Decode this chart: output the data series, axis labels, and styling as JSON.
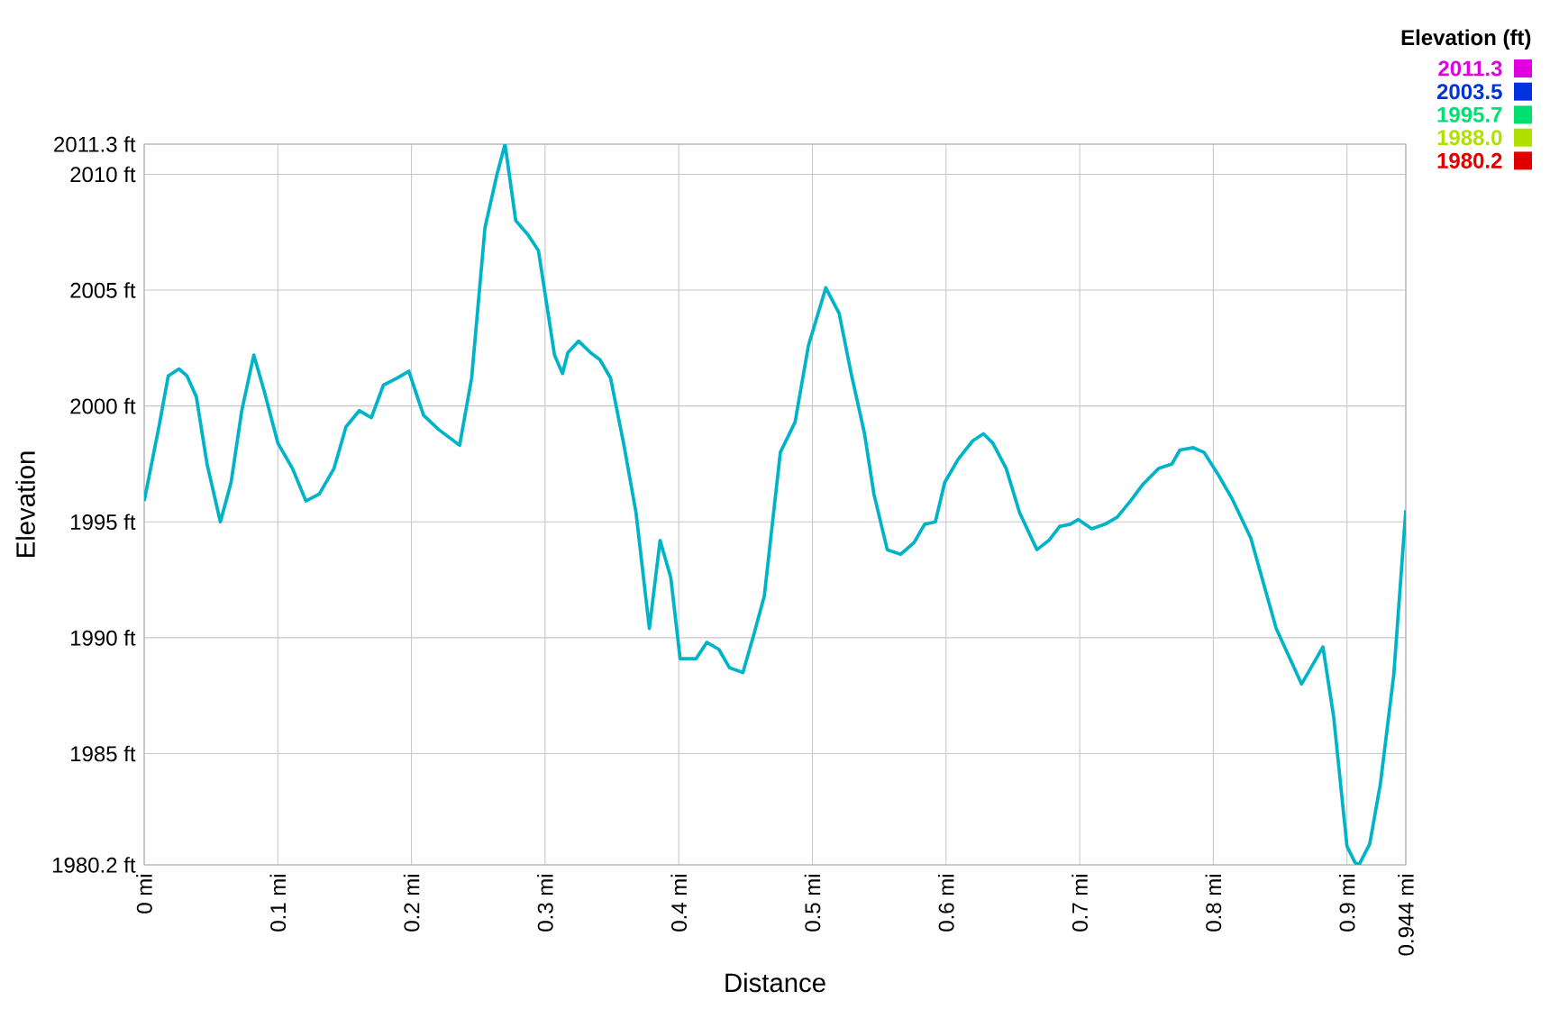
{
  "chart_data": {
    "type": "line",
    "xlabel": "Distance",
    "ylabel": "Elevation",
    "clabel": "Elevation (ft)",
    "x": [
      0,
      0.011,
      0.018,
      0.026,
      0.032,
      0.039,
      0.047,
      0.057,
      0.065,
      0.073,
      0.082,
      0.09,
      0.1,
      0.111,
      0.121,
      0.131,
      0.142,
      0.151,
      0.161,
      0.17,
      0.179,
      0.189,
      0.198,
      0.209,
      0.22,
      0.236,
      0.245,
      0.255,
      0.264,
      0.27,
      0.278,
      0.287,
      0.295,
      0.307,
      0.313,
      0.317,
      0.325,
      0.334,
      0.341,
      0.349,
      0.359,
      0.368,
      0.378,
      0.386,
      0.394,
      0.401,
      0.413,
      0.421,
      0.43,
      0.438,
      0.448,
      0.456,
      0.464,
      0.476,
      0.487,
      0.497,
      0.51,
      0.52,
      0.529,
      0.539,
      0.546,
      0.556,
      0.566,
      0.576,
      0.584,
      0.592,
      0.599,
      0.609,
      0.62,
      0.628,
      0.635,
      0.645,
      0.655,
      0.668,
      0.677,
      0.685,
      0.693,
      0.699,
      0.709,
      0.719,
      0.728,
      0.738,
      0.747,
      0.759,
      0.769,
      0.775,
      0.785,
      0.793,
      0.804,
      0.814,
      0.828,
      0.847,
      0.866,
      0.882,
      0.89,
      0.9,
      0.906,
      0.909,
      0.917,
      0.925,
      0.935,
      0.944
    ],
    "series": [
      {
        "color": "#00b4c8",
        "values": [
          1995.9,
          1999.1,
          2001.3,
          2001.6,
          2001.3,
          2000.4,
          1997.5,
          1995.0,
          1996.7,
          1999.8,
          2002.2,
          2000.6,
          1998.4,
          1997.3,
          1995.9,
          1996.2,
          1997.3,
          1999.1,
          1999.8,
          1999.5,
          2000.9,
          2001.2,
          2001.5,
          1999.6,
          1999.0,
          1998.3,
          2001.2,
          2007.7,
          2010.0,
          2011.3,
          2008.0,
          2007.4,
          2006.7,
          2002.2,
          2001.4,
          2002.3,
          2002.8,
          2002.3,
          2002.0,
          2001.2,
          1998.3,
          1995.4,
          1990.4,
          1994.2,
          1992.6,
          1989.1,
          1989.1,
          1989.8,
          1989.5,
          1988.7,
          1988.5,
          1990.1,
          1991.8,
          1998.0,
          1999.3,
          2002.6,
          2005.1,
          2004.0,
          2001.4,
          1998.8,
          1996.2,
          1993.8,
          1993.6,
          1994.1,
          1994.9,
          1995.0,
          1996.7,
          1997.7,
          1998.5,
          1998.8,
          1998.4,
          1997.3,
          1995.4,
          1993.8,
          1994.2,
          1994.8,
          1994.9,
          1995.1,
          1994.7,
          1994.9,
          1995.2,
          1995.9,
          1996.6,
          1997.3,
          1997.5,
          1998.1,
          1998.2,
          1998.0,
          1997.0,
          1996.0,
          1994.3,
          1990.4,
          1988.0,
          1989.6,
          1986.6,
          1981.0,
          1980.3,
          1980.2,
          1981.1,
          1983.7,
          1988.4,
          1995.5
        ]
      }
    ],
    "xlim": [
      0,
      0.944
    ],
    "xticks": [
      {
        "value": 0,
        "label": "0 mi"
      },
      {
        "value": 0.1,
        "label": "0.1 mi"
      },
      {
        "value": 0.2,
        "label": "0.2 mi"
      },
      {
        "value": 0.3,
        "label": "0.3 mi"
      },
      {
        "value": 0.4,
        "label": "0.4 mi"
      },
      {
        "value": 0.5,
        "label": "0.5 mi"
      },
      {
        "value": 0.6,
        "label": "0.6 mi"
      },
      {
        "value": 0.7,
        "label": "0.7 mi"
      },
      {
        "value": 0.8,
        "label": "0.8 mi"
      },
      {
        "value": 0.9,
        "label": "0.9 mi"
      },
      {
        "value": 0.944,
        "label": "0.944 mi"
      }
    ],
    "ylim": [
      1980.2,
      2011.3
    ],
    "yticks": [
      {
        "value": 1980.2,
        "label": "1980.2 ft"
      },
      {
        "value": 1985,
        "label": "1985 ft"
      },
      {
        "value": 1990,
        "label": "1990 ft"
      },
      {
        "value": 1995,
        "label": "1995 ft"
      },
      {
        "value": 2000,
        "label": "2000 ft"
      },
      {
        "value": 2005,
        "label": "2005 ft"
      },
      {
        "value": 2010,
        "label": "2010 ft"
      },
      {
        "value": 2011.3,
        "label": "2011.3 ft"
      }
    ],
    "cticks": [
      2011.3,
      2003.5,
      1995.7,
      {
        "value": 1988.0,
        "label": "1988.0"
      },
      1980.2
    ],
    "clim": [
      1980.2,
      2011.3
    ],
    "colors": [
      "#e000e0",
      "#0033e0",
      "#00e070",
      "#b0e000",
      "#e00000"
    ],
    "grid": true
  }
}
